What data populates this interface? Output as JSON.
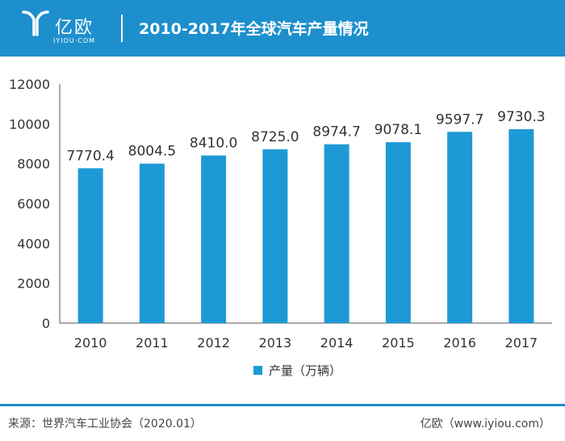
{
  "header": {
    "logo_text": "亿欧",
    "logo_sub": "IYIOU·COM",
    "title": "2010-2017年全球汽车产量情况"
  },
  "colors": {
    "header_bg": "#1d8fcd",
    "bar": "#1d9ad6"
  },
  "chart_data": {
    "type": "bar",
    "categories": [
      "2010",
      "2011",
      "2012",
      "2013",
      "2014",
      "2015",
      "2016",
      "2017"
    ],
    "series": [
      {
        "name": "产量（万辆）",
        "values": [
          7770.4,
          8004.5,
          8410.0,
          8725.0,
          8974.7,
          9078.1,
          9597.7,
          9730.3
        ]
      }
    ],
    "data_labels": [
      "7770.4",
      "8004.5",
      "8410.0",
      "8725.0",
      "8974.7",
      "9078.1",
      "9597.7",
      "9730.3"
    ],
    "yticks": [
      "0",
      "2000",
      "4000",
      "6000",
      "8000",
      "10000",
      "12000"
    ],
    "ylim": [
      0,
      12000
    ],
    "grid": false,
    "legend_position": "bottom-center"
  },
  "footer": {
    "source": "来源：世界汽车工业协会（2020.01）",
    "brand": "亿欧（www.iyiou.com）"
  }
}
